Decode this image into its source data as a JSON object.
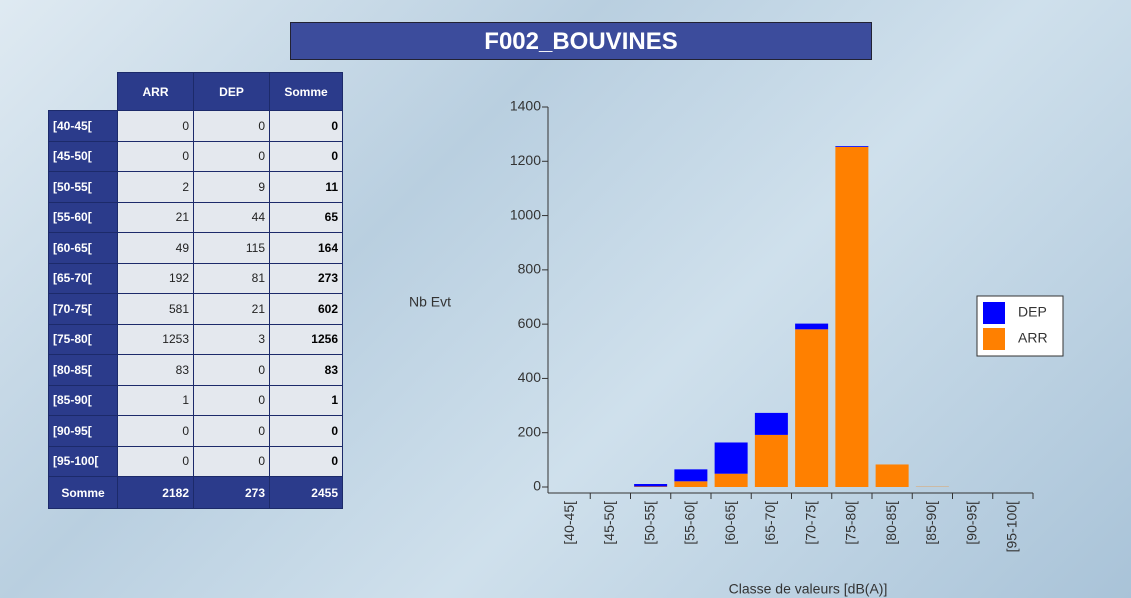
{
  "title": "F002_BOUVINES",
  "table": {
    "columns": [
      "ARR",
      "DEP",
      "Somme"
    ],
    "rows": [
      [
        "[40-45[",
        0,
        0,
        0
      ],
      [
        "[45-50[",
        0,
        0,
        0
      ],
      [
        "[50-55[",
        2,
        9,
        11
      ],
      [
        "[55-60[",
        21,
        44,
        65
      ],
      [
        "[60-65[",
        49,
        115,
        164
      ],
      [
        "[65-70[",
        192,
        81,
        273
      ],
      [
        "[70-75[",
        581,
        21,
        602
      ],
      [
        "[75-80[",
        1253,
        3,
        1256
      ],
      [
        "[80-85[",
        83,
        0,
        83
      ],
      [
        "[85-90[",
        1,
        0,
        1
      ],
      [
        "[90-95[",
        0,
        0,
        0
      ],
      [
        "[95-100[",
        0,
        0,
        0
      ]
    ],
    "total_row": [
      "Somme",
      2182,
      273,
      2455
    ]
  },
  "chart_data": {
    "type": "stacked_bar",
    "y_label": "Nb Evt",
    "x_label": "Classe de valeurs [dB(A)]",
    "categories": [
      "[40-45[",
      "[45-50[",
      "[50-55[",
      "[55-60[",
      "[60-65[",
      "[65-70[",
      "[70-75[",
      "[75-80[",
      "[80-85[",
      "[85-90[",
      "[90-95[",
      "[95-100["
    ],
    "series": [
      {
        "name": "ARR",
        "color": "#ff8000",
        "values": [
          0,
          0,
          2,
          21,
          49,
          192,
          581,
          1253,
          83,
          1,
          0,
          0
        ]
      },
      {
        "name": "DEP",
        "color": "#0000ff",
        "values": [
          0,
          0,
          9,
          44,
          115,
          81,
          21,
          3,
          0,
          0,
          0,
          0
        ]
      }
    ],
    "ylim": [
      0,
      1400
    ],
    "yticks": [
      0,
      200,
      400,
      600,
      800,
      1000,
      1200,
      1400
    ],
    "legend": "right"
  }
}
